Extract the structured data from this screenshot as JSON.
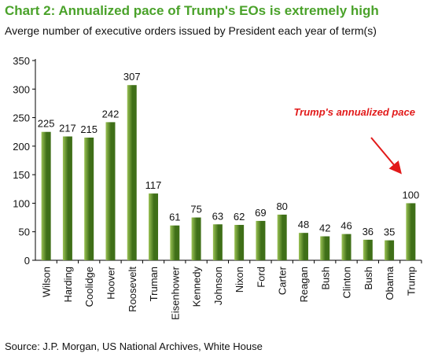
{
  "title": "Chart 2: Annualized pace of Trump's EOs is extremely high",
  "subtitle": "Averge number of executive orders issued by President each year of term(s)",
  "source": "Source: J.P. Morgan, US National Archives, White House",
  "colors": {
    "title": "#4aa22a",
    "bar_light": "#9bc255",
    "bar_dark": "#3f6f18",
    "annotation": "#e21a1a"
  },
  "chart_data": {
    "type": "bar",
    "title": "",
    "xlabel": "",
    "ylabel": "",
    "ylim": [
      0,
      350
    ],
    "yticks": [
      0,
      50,
      100,
      150,
      200,
      250,
      300,
      350
    ],
    "categories": [
      "Wilson",
      "Harding",
      "Coolidge",
      "Hoover",
      "Roosevelt",
      "Truman",
      "Eisenhower",
      "Kennedy",
      "Johnson",
      "Nixon",
      "Ford",
      "Carter",
      "Reagan",
      "Bush",
      "Clinton",
      "Bush",
      "Obama",
      "Trump"
    ],
    "values": [
      225,
      217,
      215,
      242,
      307,
      117,
      61,
      75,
      63,
      62,
      69,
      80,
      48,
      42,
      46,
      36,
      35,
      100
    ],
    "grid": false,
    "annotations": [
      {
        "text": "Trump's annualized pace",
        "target": "Trump",
        "arrow": true
      }
    ]
  }
}
